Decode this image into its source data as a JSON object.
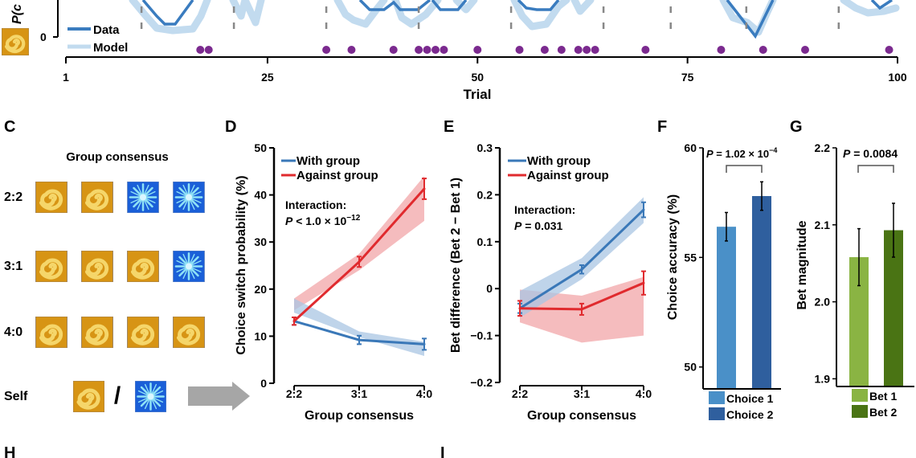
{
  "colors": {
    "data_line": "#3a7cbf",
    "model_line": "#c2dbef",
    "dots": "#7b2a8f",
    "dashes": "#888888",
    "with_group": "#3a78b8",
    "with_group_band": "#a9c6e3",
    "against_group": "#e02a2e",
    "against_group_band": "#f2a5a8",
    "choice1": "#4a90c8",
    "choice2": "#2f5f9e",
    "bet1": "#8ab443",
    "bet2": "#4a7414",
    "arrow": "#a6a6a6",
    "spiral_bg": "#d79414",
    "spiral_fg": "#f5d66a",
    "snow_bg": "#1a5fd8",
    "snow_fg": "#8fe3f6"
  },
  "panel_labels": {
    "c": "C",
    "d": "D",
    "e": "E",
    "f": "F",
    "g": "G",
    "h": "H",
    "i": "I"
  },
  "panel_c": {
    "title": "Group consensus",
    "rows": [
      {
        "label": "2:2",
        "stimuli": [
          "spiral",
          "spiral",
          "snowflake",
          "snowflake"
        ]
      },
      {
        "label": "3:1",
        "stimuli": [
          "spiral",
          "spiral",
          "spiral",
          "snowflake"
        ]
      },
      {
        "label": "4:0",
        "stimuli": [
          "spiral",
          "spiral",
          "spiral",
          "spiral"
        ]
      }
    ],
    "self_label": "Self",
    "self_separator": "/",
    "self_stimuli": [
      "spiral",
      "snowflake"
    ]
  },
  "chart_data": [
    {
      "id": "top",
      "type": "line",
      "ylabel": "P(c",
      "y_tick_visible": "0",
      "xlabel": "Trial",
      "xlim": [
        1,
        100
      ],
      "x_ticks": [
        1,
        25,
        50,
        75,
        100
      ],
      "legend": [
        {
          "name": "Data"
        },
        {
          "name": "Model"
        }
      ],
      "legend_position": "bottom-left",
      "reversal_trials": [
        10,
        21,
        32,
        43,
        54,
        65,
        73,
        82,
        93
      ],
      "dot_trials": [
        17,
        18,
        32,
        35,
        40,
        43,
        44,
        45,
        46,
        50,
        55,
        58,
        60,
        62,
        63,
        64,
        70,
        79,
        84,
        89,
        99
      ],
      "data_trough_trials": [
        {
          "trial": 12,
          "depth": 0.3
        },
        {
          "trial": 13,
          "depth": 0.3
        },
        {
          "trial": 82,
          "depth": 0.85
        }
      ]
    },
    {
      "id": "D",
      "type": "line",
      "categories": [
        "2:2",
        "3:1",
        "4:0"
      ],
      "xlabel": "Group consensus",
      "ylabel": "Choice switch probability (%)",
      "ylim": [
        0,
        50
      ],
      "y_ticks": [
        0,
        10,
        20,
        30,
        40,
        50
      ],
      "series": [
        {
          "name": "With group",
          "values": [
            13.2,
            9.2,
            8.3
          ],
          "errors": [
            0.8,
            0.9,
            1.2
          ],
          "model_lower": [
            15.0,
            9.8,
            5.8
          ],
          "model_upper": [
            18.0,
            11.0,
            8.8
          ]
        },
        {
          "name": "Against group",
          "values": [
            13.2,
            25.8,
            41.3
          ],
          "errors": [
            0.8,
            1.1,
            2.2
          ],
          "model_lower": [
            15.5,
            24.0,
            34.5
          ],
          "model_upper": [
            18.0,
            27.5,
            44.0
          ]
        }
      ],
      "annotation": {
        "line1": "Interaction:",
        "p_italic": "P",
        "rest": " < 1.0 × 10",
        "exponent": "−12"
      },
      "legend_position": "top-left"
    },
    {
      "id": "E",
      "type": "line",
      "categories": [
        "2:2",
        "3:1",
        "4:0"
      ],
      "xlabel": "Group consensus",
      "ylabel": "Bet difference (Bet 2 − Bet 1)",
      "ylim": [
        -0.2,
        0.3
      ],
      "y_ticks": [
        -0.2,
        -0.1,
        0,
        0.1,
        0.2,
        0.3
      ],
      "y_tick_labels": [
        "−0.2",
        "−0.1",
        "0",
        "0.1",
        "0.2",
        "0.3"
      ],
      "series": [
        {
          "name": "With group",
          "values": [
            -0.042,
            0.041,
            0.168
          ],
          "errors": [
            0.01,
            0.009,
            0.016
          ],
          "model_lower": [
            -0.062,
            0.02,
            0.14
          ],
          "model_upper": [
            -0.005,
            0.065,
            0.195
          ]
        },
        {
          "name": "Against group",
          "values": [
            -0.042,
            -0.044,
            0.012
          ],
          "errors": [
            0.016,
            0.012,
            0.025
          ],
          "model_lower": [
            -0.072,
            -0.115,
            -0.1
          ],
          "model_upper": [
            -0.002,
            -0.015,
            0.025
          ]
        }
      ],
      "annotation": {
        "line1": "Interaction:",
        "p_italic": "P",
        "rest": " = 0.031"
      },
      "legend_position": "top-left"
    },
    {
      "id": "F",
      "type": "bar",
      "categories": [
        "Choice 1",
        "Choice 2"
      ],
      "values": [
        56.4,
        57.8
      ],
      "errors": [
        0.65,
        0.65
      ],
      "ylabel": "Choice accuracy (%)",
      "ylim": [
        49,
        60
      ],
      "y_ticks": [
        50,
        55,
        60
      ],
      "significance": {
        "p_italic": "P",
        "rest": " = 1.02 × 10",
        "exponent": "−4"
      },
      "legend_position": "bottom"
    },
    {
      "id": "G",
      "type": "bar",
      "categories": [
        "Bet 1",
        "Bet 2"
      ],
      "values": [
        2.058,
        2.093
      ],
      "errors": [
        0.037,
        0.035
      ],
      "ylabel": "Bet magnitude",
      "ylim": [
        1.89,
        2.2
      ],
      "y_ticks": [
        1.9,
        2.0,
        2.1,
        2.2
      ],
      "y_tick_labels": [
        "1.9",
        "2.0",
        "2.1",
        "2.2"
      ],
      "significance": {
        "p_italic": "P",
        "rest": " = 0.0084"
      },
      "legend_position": "bottom"
    }
  ]
}
